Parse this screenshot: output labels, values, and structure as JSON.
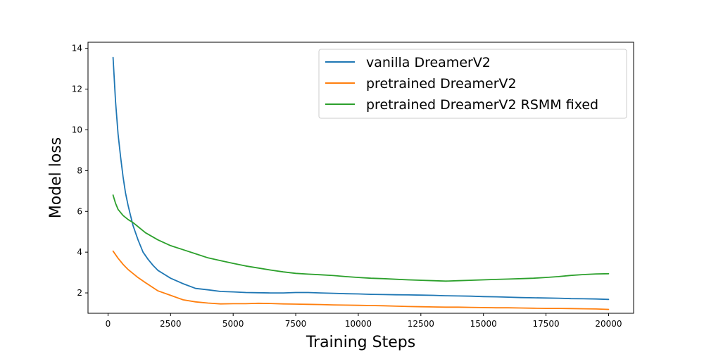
{
  "chart_data": {
    "type": "line",
    "title": "",
    "xlabel": "Training Steps",
    "ylabel": "Model loss",
    "xlim": [
      -800,
      21000
    ],
    "ylim": [
      1.0,
      14.3
    ],
    "xticks": [
      0,
      2500,
      5000,
      7500,
      10000,
      12500,
      15000,
      17500,
      20000
    ],
    "yticks": [
      2,
      4,
      6,
      8,
      10,
      12,
      14
    ],
    "grid": false,
    "legend_position": "top-right",
    "series": [
      {
        "name": "vanilla DreamerV2",
        "color": "#1f77b4",
        "x": [
          200,
          300,
          400,
          500,
          600,
          700,
          800,
          900,
          1000,
          1200,
          1400,
          1600,
          1800,
          2000,
          2200,
          2500,
          3000,
          3500,
          4000,
          4500,
          5000,
          5500,
          6000,
          6500,
          7000,
          7500,
          8000,
          8500,
          9000,
          9500,
          10000,
          10500,
          11000,
          11500,
          12000,
          12500,
          13000,
          13500,
          14000,
          14500,
          15000,
          15500,
          16000,
          16500,
          17000,
          17500,
          18000,
          18500,
          19000,
          19500,
          20000
        ],
        "y": [
          13.55,
          11.4,
          9.8,
          8.7,
          7.7,
          6.9,
          6.3,
          5.8,
          5.3,
          4.6,
          4.0,
          3.65,
          3.35,
          3.1,
          2.95,
          2.72,
          2.45,
          2.22,
          2.15,
          2.07,
          2.05,
          2.02,
          2.01,
          2.0,
          2.0,
          2.02,
          2.02,
          2.0,
          1.98,
          1.96,
          1.95,
          1.93,
          1.92,
          1.91,
          1.9,
          1.89,
          1.88,
          1.86,
          1.85,
          1.84,
          1.82,
          1.81,
          1.79,
          1.77,
          1.76,
          1.75,
          1.74,
          1.72,
          1.71,
          1.7,
          1.68
        ]
      },
      {
        "name": "pretrained DreamerV2",
        "color": "#ff7f0e",
        "x": [
          200,
          400,
          600,
          800,
          1000,
          1200,
          1500,
          2000,
          2500,
          3000,
          3500,
          4000,
          4500,
          5000,
          5500,
          6000,
          6500,
          7000,
          7500,
          8000,
          8500,
          9000,
          9500,
          10000,
          10500,
          11000,
          11500,
          12000,
          12500,
          13000,
          13500,
          14000,
          14500,
          15000,
          15500,
          16000,
          16500,
          17000,
          17500,
          18000,
          18500,
          19000,
          19500,
          20000
        ],
        "y": [
          4.05,
          3.7,
          3.4,
          3.15,
          2.95,
          2.75,
          2.5,
          2.1,
          1.88,
          1.66,
          1.56,
          1.5,
          1.46,
          1.47,
          1.47,
          1.49,
          1.48,
          1.46,
          1.45,
          1.44,
          1.43,
          1.41,
          1.4,
          1.39,
          1.38,
          1.37,
          1.35,
          1.33,
          1.32,
          1.31,
          1.3,
          1.3,
          1.29,
          1.28,
          1.27,
          1.27,
          1.26,
          1.25,
          1.24,
          1.24,
          1.23,
          1.22,
          1.21,
          1.19
        ]
      },
      {
        "name": "pretrained DreamerV2 RSMM fixed",
        "color": "#2ca02c",
        "x": [
          200,
          300,
          400,
          600,
          800,
          1000,
          1200,
          1500,
          2000,
          2500,
          3000,
          3500,
          4000,
          4500,
          5000,
          5500,
          6000,
          6500,
          7000,
          7500,
          8000,
          8500,
          9000,
          9500,
          10000,
          10500,
          11000,
          11500,
          12000,
          12500,
          13000,
          13500,
          14000,
          14500,
          15000,
          15500,
          16000,
          16500,
          17000,
          17500,
          18000,
          18500,
          19000,
          19500,
          20000
        ],
        "y": [
          6.8,
          6.4,
          6.1,
          5.8,
          5.6,
          5.45,
          5.25,
          4.95,
          4.6,
          4.32,
          4.12,
          3.92,
          3.72,
          3.58,
          3.45,
          3.32,
          3.22,
          3.12,
          3.03,
          2.96,
          2.92,
          2.89,
          2.85,
          2.8,
          2.76,
          2.72,
          2.7,
          2.67,
          2.64,
          2.62,
          2.6,
          2.58,
          2.6,
          2.62,
          2.64,
          2.66,
          2.68,
          2.7,
          2.72,
          2.76,
          2.8,
          2.86,
          2.9,
          2.93,
          2.94
        ]
      }
    ]
  }
}
